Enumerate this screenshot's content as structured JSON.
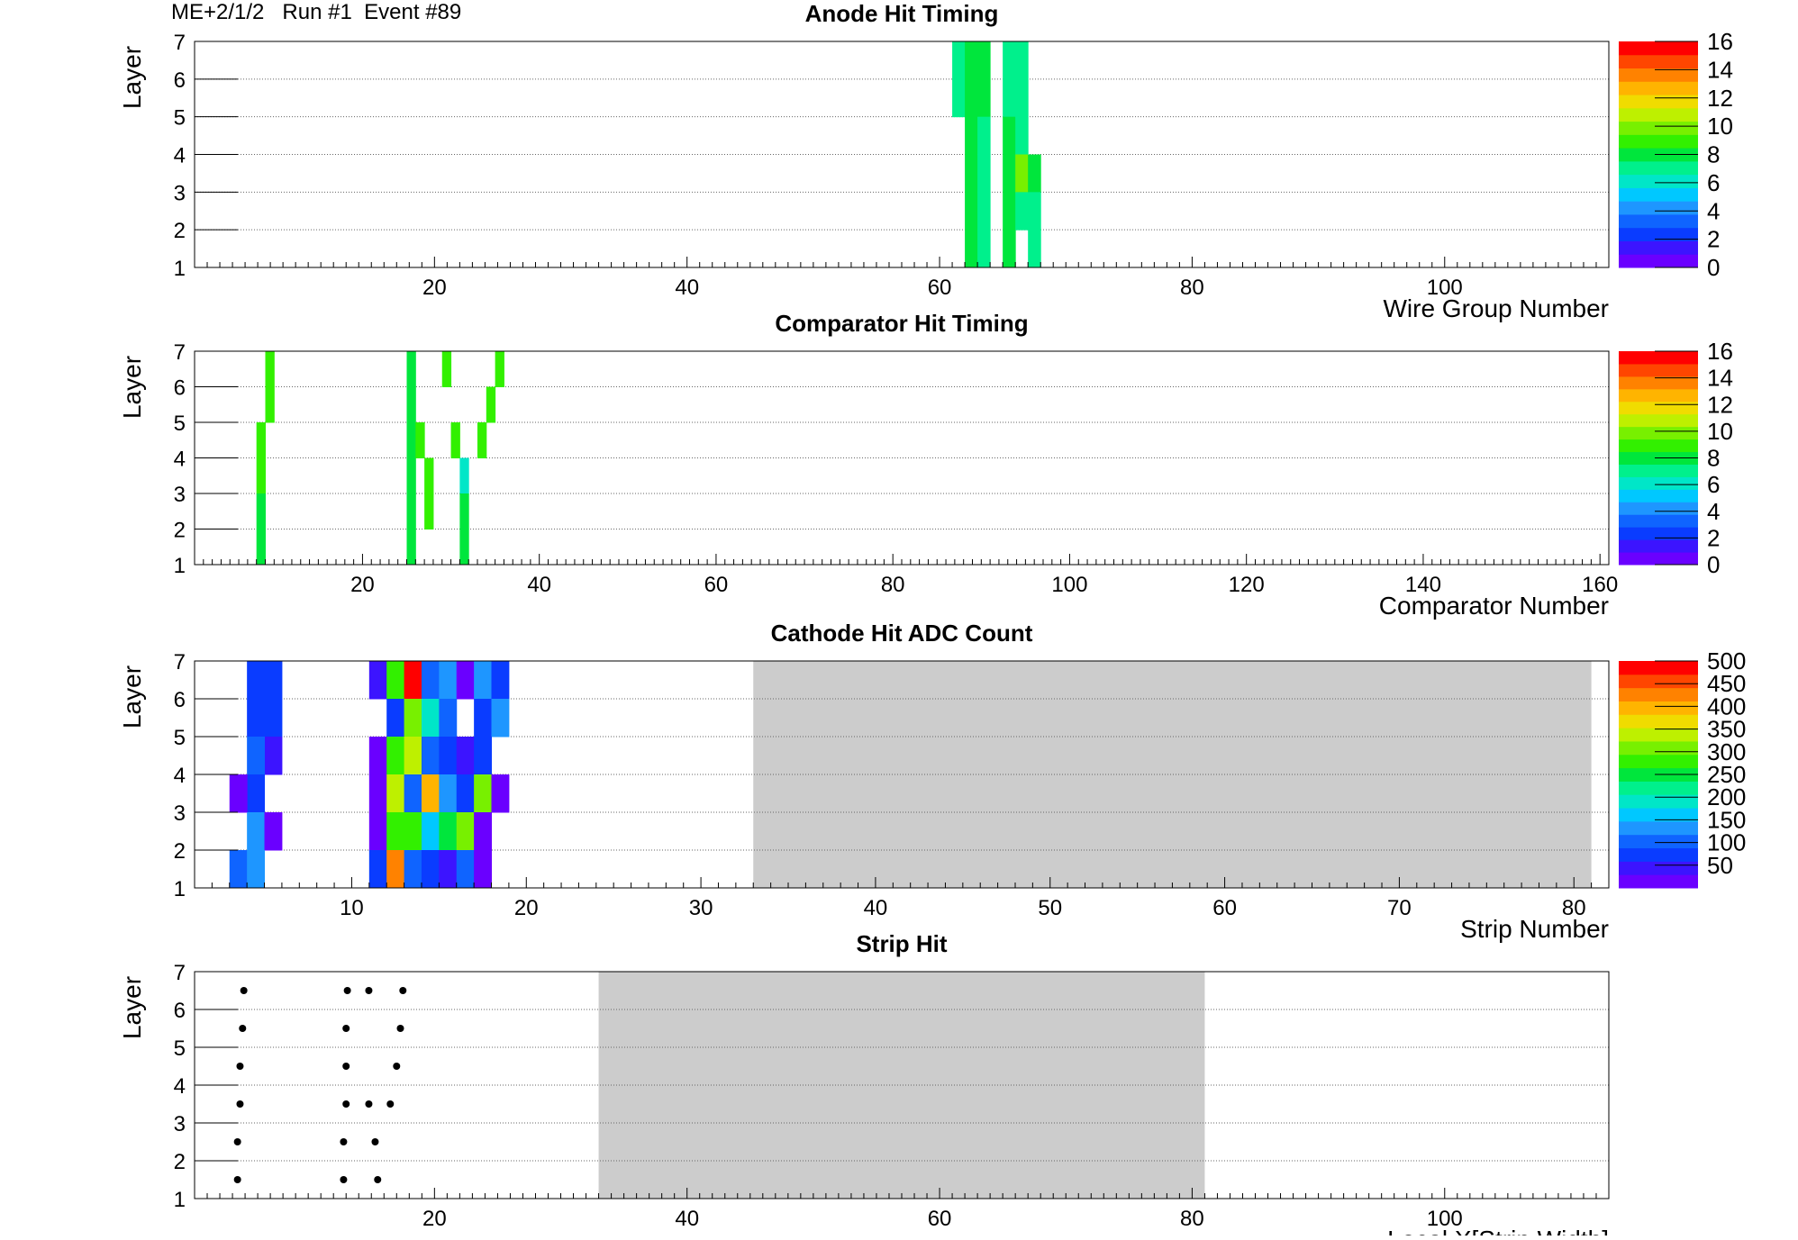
{
  "header": {
    "chamber": "ME+2/1/2",
    "run": "Run #1",
    "event": "Event #89"
  },
  "colors": {
    "palette": [
      "#6a00ff",
      "#3c14ff",
      "#0a3cff",
      "#0f64ff",
      "#1e96ff",
      "#00c8ff",
      "#00e6c8",
      "#00f08c",
      "#00e63c",
      "#32f000",
      "#78f000",
      "#bef000",
      "#f0dc00",
      "#ffb400",
      "#ff8200",
      "#ff4600",
      "#ff0000"
    ],
    "inactive_region": "#cccccc",
    "grid": "#666666"
  },
  "chart_data": [
    {
      "id": "anode",
      "type": "heatmap",
      "title": "Anode Hit Timing",
      "xlabel": "Wire Group Number",
      "ylabel": "Layer",
      "xlim": [
        1,
        113
      ],
      "ylim": [
        1,
        7
      ],
      "xticks": [
        20,
        40,
        60,
        80,
        100
      ],
      "yticks": [
        1,
        2,
        3,
        4,
        5,
        6,
        7
      ],
      "grid": "horizontal dotted",
      "colorbar": {
        "min": 0,
        "max": 16,
        "ticks": [
          0,
          2,
          4,
          6,
          8,
          10,
          12,
          14,
          16
        ]
      },
      "cells": [
        {
          "x": 61,
          "layer": 6,
          "v": 7
        },
        {
          "x": 61,
          "layer": 5,
          "v": 7
        },
        {
          "x": 62,
          "layer": 6,
          "v": 8
        },
        {
          "x": 62,
          "layer": 5,
          "v": 8
        },
        {
          "x": 62,
          "layer": 4,
          "v": 8
        },
        {
          "x": 62,
          "layer": 3,
          "v": 8
        },
        {
          "x": 62,
          "layer": 2,
          "v": 8
        },
        {
          "x": 62,
          "layer": 1,
          "v": 8
        },
        {
          "x": 63,
          "layer": 6,
          "v": 8
        },
        {
          "x": 63,
          "layer": 5,
          "v": 8
        },
        {
          "x": 63,
          "layer": 4,
          "v": 7
        },
        {
          "x": 63,
          "layer": 3,
          "v": 7
        },
        {
          "x": 63,
          "layer": 2,
          "v": 7
        },
        {
          "x": 63,
          "layer": 1,
          "v": 7
        },
        {
          "x": 65,
          "layer": 6,
          "v": 7
        },
        {
          "x": 65,
          "layer": 5,
          "v": 7
        },
        {
          "x": 65,
          "layer": 4,
          "v": 8
        },
        {
          "x": 65,
          "layer": 3,
          "v": 8
        },
        {
          "x": 65,
          "layer": 2,
          "v": 8
        },
        {
          "x": 65,
          "layer": 1,
          "v": 8
        },
        {
          "x": 66,
          "layer": 6,
          "v": 7
        },
        {
          "x": 66,
          "layer": 5,
          "v": 7
        },
        {
          "x": 66,
          "layer": 4,
          "v": 7
        },
        {
          "x": 66,
          "layer": 3,
          "v": 10
        },
        {
          "x": 66,
          "layer": 2,
          "v": 7
        },
        {
          "x": 67,
          "layer": 3,
          "v": 8
        },
        {
          "x": 67,
          "layer": 2,
          "v": 7
        },
        {
          "x": 67,
          "layer": 1,
          "v": 7
        }
      ]
    },
    {
      "id": "comparator",
      "type": "heatmap",
      "title": "Comparator Hit Timing",
      "xlabel": "Comparator Number",
      "ylabel": "Layer",
      "xlim": [
        1,
        161
      ],
      "ylim": [
        1,
        7
      ],
      "xticks": [
        20,
        40,
        60,
        80,
        100,
        120,
        140,
        160
      ],
      "yticks": [
        1,
        2,
        3,
        4,
        5,
        6,
        7
      ],
      "grid": "horizontal dotted",
      "colorbar": {
        "min": 0,
        "max": 16,
        "ticks": [
          0,
          2,
          4,
          6,
          8,
          10,
          12,
          14,
          16
        ]
      },
      "cells": [
        {
          "x": 9,
          "layer": 6,
          "v": 9
        },
        {
          "x": 9,
          "layer": 5,
          "v": 9
        },
        {
          "x": 8,
          "layer": 4,
          "v": 9
        },
        {
          "x": 8,
          "layer": 3,
          "v": 9
        },
        {
          "x": 8,
          "layer": 2,
          "v": 8
        },
        {
          "x": 8,
          "layer": 1,
          "v": 8
        },
        {
          "x": 25,
          "layer": 6,
          "v": 8
        },
        {
          "x": 25,
          "layer": 5,
          "v": 8
        },
        {
          "x": 25,
          "layer": 4,
          "v": 8
        },
        {
          "x": 25,
          "layer": 3,
          "v": 8
        },
        {
          "x": 25,
          "layer": 2,
          "v": 8
        },
        {
          "x": 25,
          "layer": 1,
          "v": 8
        },
        {
          "x": 26,
          "layer": 4,
          "v": 9
        },
        {
          "x": 27,
          "layer": 3,
          "v": 9
        },
        {
          "x": 27,
          "layer": 2,
          "v": 9
        },
        {
          "x": 29,
          "layer": 6,
          "v": 9
        },
        {
          "x": 30,
          "layer": 4,
          "v": 9
        },
        {
          "x": 31,
          "layer": 3,
          "v": 6
        },
        {
          "x": 31,
          "layer": 2,
          "v": 8
        },
        {
          "x": 31,
          "layer": 1,
          "v": 8
        },
        {
          "x": 33,
          "layer": 4,
          "v": 9
        },
        {
          "x": 34,
          "layer": 5,
          "v": 9
        },
        {
          "x": 35,
          "layer": 6,
          "v": 9
        }
      ]
    },
    {
      "id": "cathode",
      "type": "heatmap",
      "title": "Cathode Hit ADC Count",
      "xlabel": "Strip Number",
      "ylabel": "Layer",
      "xlim": [
        1,
        82
      ],
      "ylim": [
        1,
        7
      ],
      "xticks": [
        10,
        20,
        30,
        40,
        50,
        60,
        70,
        80
      ],
      "yticks": [
        1,
        2,
        3,
        4,
        5,
        6,
        7
      ],
      "grid": "horizontal dotted",
      "inactive_x": [
        33,
        81
      ],
      "colorbar": {
        "min": 0,
        "max": 500,
        "ticks": [
          50,
          100,
          150,
          200,
          250,
          300,
          350,
          400,
          450,
          500
        ]
      },
      "cells": [
        {
          "x": 4,
          "layer": 6,
          "v": 60
        },
        {
          "x": 5,
          "layer": 6,
          "v": 60
        },
        {
          "x": 4,
          "layer": 5,
          "v": 60
        },
        {
          "x": 5,
          "layer": 5,
          "v": 60
        },
        {
          "x": 5,
          "layer": 4,
          "v": 30
        },
        {
          "x": 4,
          "layer": 4,
          "v": 90
        },
        {
          "x": 4,
          "layer": 3,
          "v": 75
        },
        {
          "x": 3,
          "layer": 3,
          "v": 10
        },
        {
          "x": 4,
          "layer": 2,
          "v": 120
        },
        {
          "x": 5,
          "layer": 2,
          "v": 10
        },
        {
          "x": 3,
          "layer": 1,
          "v": 90
        },
        {
          "x": 4,
          "layer": 1,
          "v": 140
        },
        {
          "x": 11,
          "layer": 6,
          "v": 30
        },
        {
          "x": 12,
          "layer": 6,
          "v": 280
        },
        {
          "x": 13,
          "layer": 6,
          "v": 480
        },
        {
          "x": 14,
          "layer": 6,
          "v": 90
        },
        {
          "x": 15,
          "layer": 6,
          "v": 140
        },
        {
          "x": 16,
          "layer": 6,
          "v": 15
        },
        {
          "x": 17,
          "layer": 6,
          "v": 120
        },
        {
          "x": 18,
          "layer": 6,
          "v": 60
        },
        {
          "x": 12,
          "layer": 5,
          "v": 60
        },
        {
          "x": 13,
          "layer": 5,
          "v": 320
        },
        {
          "x": 14,
          "layer": 5,
          "v": 200
        },
        {
          "x": 15,
          "layer": 5,
          "v": 90
        },
        {
          "x": 17,
          "layer": 5,
          "v": 60
        },
        {
          "x": 18,
          "layer": 5,
          "v": 140
        },
        {
          "x": 11,
          "layer": 4,
          "v": 10
        },
        {
          "x": 12,
          "layer": 4,
          "v": 290
        },
        {
          "x": 13,
          "layer": 4,
          "v": 330
        },
        {
          "x": 14,
          "layer": 4,
          "v": 100
        },
        {
          "x": 15,
          "layer": 4,
          "v": 60
        },
        {
          "x": 16,
          "layer": 4,
          "v": 30
        },
        {
          "x": 17,
          "layer": 4,
          "v": 60
        },
        {
          "x": 11,
          "layer": 3,
          "v": 20
        },
        {
          "x": 12,
          "layer": 3,
          "v": 340
        },
        {
          "x": 13,
          "layer": 3,
          "v": 90
        },
        {
          "x": 14,
          "layer": 3,
          "v": 410
        },
        {
          "x": 15,
          "layer": 3,
          "v": 120
        },
        {
          "x": 16,
          "layer": 3,
          "v": 60
        },
        {
          "x": 17,
          "layer": 3,
          "v": 300
        },
        {
          "x": 18,
          "layer": 3,
          "v": 10
        },
        {
          "x": 11,
          "layer": 2,
          "v": 20
        },
        {
          "x": 12,
          "layer": 2,
          "v": 270
        },
        {
          "x": 13,
          "layer": 2,
          "v": 270
        },
        {
          "x": 14,
          "layer": 2,
          "v": 170
        },
        {
          "x": 15,
          "layer": 2,
          "v": 260
        },
        {
          "x": 16,
          "layer": 2,
          "v": 320
        },
        {
          "x": 17,
          "layer": 2,
          "v": 20
        },
        {
          "x": 11,
          "layer": 1,
          "v": 60
        },
        {
          "x": 12,
          "layer": 1,
          "v": 420
        },
        {
          "x": 13,
          "layer": 1,
          "v": 90
        },
        {
          "x": 14,
          "layer": 1,
          "v": 60
        },
        {
          "x": 15,
          "layer": 1,
          "v": 40
        },
        {
          "x": 16,
          "layer": 1,
          "v": 90
        },
        {
          "x": 17,
          "layer": 1,
          "v": 10
        }
      ]
    },
    {
      "id": "strip",
      "type": "scatter",
      "title": "Strip Hit",
      "xlabel": "Local X[Strip Width]",
      "ylabel": "Layer",
      "xlim": [
        1,
        113
      ],
      "ylim": [
        1,
        7
      ],
      "xticks": [
        20,
        40,
        60,
        80,
        100
      ],
      "yticks": [
        1,
        2,
        3,
        4,
        5,
        6,
        7
      ],
      "grid": "horizontal dotted",
      "inactive_x": [
        33,
        81
      ],
      "points": [
        {
          "x": 4.9,
          "y": 6.5
        },
        {
          "x": 13.1,
          "y": 6.5
        },
        {
          "x": 14.8,
          "y": 6.5
        },
        {
          "x": 17.5,
          "y": 6.5
        },
        {
          "x": 4.8,
          "y": 5.5
        },
        {
          "x": 13.0,
          "y": 5.5
        },
        {
          "x": 17.3,
          "y": 5.5
        },
        {
          "x": 4.6,
          "y": 4.5
        },
        {
          "x": 13.0,
          "y": 4.5
        },
        {
          "x": 17.0,
          "y": 4.5
        },
        {
          "x": 4.6,
          "y": 3.5
        },
        {
          "x": 13.0,
          "y": 3.5
        },
        {
          "x": 14.8,
          "y": 3.5
        },
        {
          "x": 16.5,
          "y": 3.5
        },
        {
          "x": 4.4,
          "y": 2.5
        },
        {
          "x": 12.8,
          "y": 2.5
        },
        {
          "x": 15.3,
          "y": 2.5
        },
        {
          "x": 4.4,
          "y": 1.5
        },
        {
          "x": 12.8,
          "y": 1.5
        },
        {
          "x": 15.5,
          "y": 1.5
        }
      ]
    }
  ]
}
